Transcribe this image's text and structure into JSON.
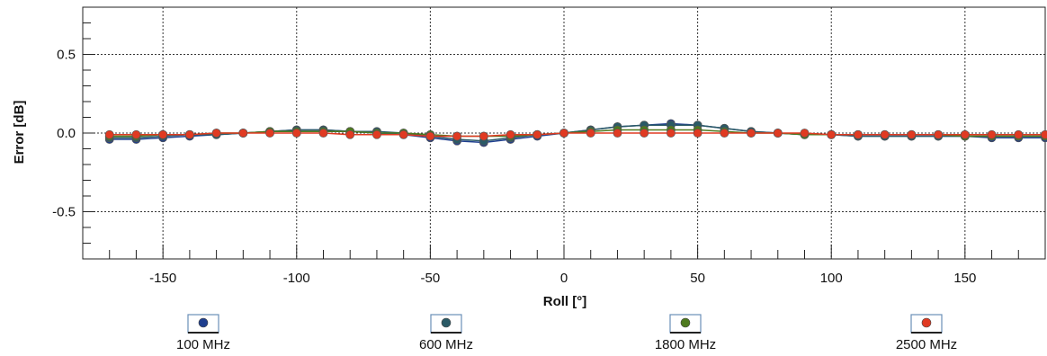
{
  "chart_data": {
    "type": "line",
    "title": "",
    "xlabel": "Roll [°]",
    "ylabel": "Error [dB]",
    "xlim": [
      -180,
      180
    ],
    "ylim": [
      -0.8,
      0.8
    ],
    "xticks": [
      -150,
      -100,
      -50,
      0,
      50,
      100,
      150
    ],
    "yticks": [
      -0.5,
      0.0,
      0.5
    ],
    "xtick_labels": [
      "-150",
      "-100",
      "-50",
      "0",
      "50",
      "100",
      "150"
    ],
    "ytick_labels": [
      "-0.5",
      "0.0",
      "0.5"
    ],
    "grid": true,
    "legend_position": "bottom",
    "x": [
      -170,
      -160,
      -150,
      -140,
      -130,
      -120,
      -110,
      -100,
      -90,
      -80,
      -70,
      -60,
      -50,
      -40,
      -30,
      -20,
      -10,
      0,
      10,
      20,
      30,
      40,
      50,
      60,
      70,
      80,
      90,
      100,
      110,
      120,
      130,
      140,
      150,
      160,
      170,
      180
    ],
    "series": [
      {
        "name": "100 MHz",
        "color": "#1f3f8f",
        "values": [
          -0.04,
          -0.04,
          -0.03,
          -0.02,
          -0.01,
          0.0,
          0.01,
          0.02,
          0.02,
          0.01,
          0.0,
          -0.01,
          -0.03,
          -0.05,
          -0.06,
          -0.04,
          -0.02,
          0.0,
          0.02,
          0.04,
          0.05,
          0.06,
          0.05,
          0.03,
          0.01,
          0.0,
          -0.01,
          -0.01,
          -0.02,
          -0.02,
          -0.02,
          -0.02,
          -0.02,
          -0.03,
          -0.03,
          -0.03
        ]
      },
      {
        "name": "600 MHz",
        "color": "#2a5a66",
        "values": [
          -0.03,
          -0.03,
          -0.02,
          -0.01,
          -0.01,
          0.0,
          0.01,
          0.02,
          0.02,
          0.01,
          0.01,
          0.0,
          -0.02,
          -0.04,
          -0.05,
          -0.03,
          -0.01,
          0.0,
          0.02,
          0.04,
          0.05,
          0.05,
          0.05,
          0.03,
          0.01,
          0.0,
          -0.01,
          -0.01,
          -0.02,
          -0.02,
          -0.02,
          -0.02,
          -0.02,
          -0.02,
          -0.02,
          -0.02
        ]
      },
      {
        "name": "1800 MHz",
        "color": "#4e7a1e",
        "values": [
          -0.02,
          -0.02,
          -0.01,
          -0.01,
          0.0,
          0.0,
          0.01,
          0.01,
          0.01,
          0.01,
          0.0,
          0.0,
          -0.01,
          -0.02,
          -0.02,
          -0.02,
          -0.01,
          0.0,
          0.01,
          0.02,
          0.02,
          0.02,
          0.02,
          0.01,
          0.0,
          0.0,
          -0.01,
          -0.01,
          -0.01,
          -0.01,
          -0.01,
          -0.01,
          -0.02,
          -0.02,
          -0.02,
          -0.02
        ]
      },
      {
        "name": "2500 MHz",
        "color": "#e03a22",
        "values": [
          -0.01,
          -0.01,
          -0.01,
          -0.01,
          0.0,
          0.0,
          0.0,
          0.0,
          0.0,
          -0.01,
          -0.01,
          -0.01,
          -0.02,
          -0.02,
          -0.02,
          -0.01,
          -0.01,
          0.0,
          0.0,
          0.0,
          0.0,
          0.0,
          0.0,
          0.0,
          0.0,
          0.0,
          0.0,
          -0.01,
          -0.01,
          -0.01,
          -0.01,
          -0.01,
          -0.01,
          -0.01,
          -0.01,
          -0.01
        ]
      }
    ]
  }
}
